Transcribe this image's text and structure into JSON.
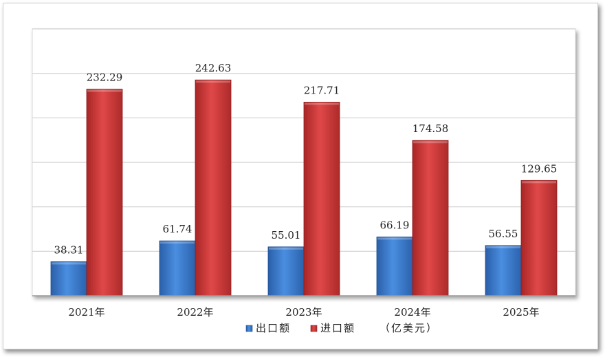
{
  "chart_data": {
    "type": "bar",
    "categories": [
      "2021年",
      "2022年",
      "2023年",
      "2024年",
      "2025年"
    ],
    "series": [
      {
        "name": "出口额",
        "values": [
          38.31,
          61.74,
          55.01,
          66.19,
          56.55
        ],
        "color": "#3a78c8"
      },
      {
        "name": "进口额",
        "values": [
          232.29,
          242.63,
          217.71,
          174.58,
          129.65
        ],
        "color": "#d23a3a"
      }
    ],
    "unit_note": "（亿美元）",
    "ylim": [
      0,
      300
    ],
    "grid": true,
    "legend_position": "bottom"
  }
}
